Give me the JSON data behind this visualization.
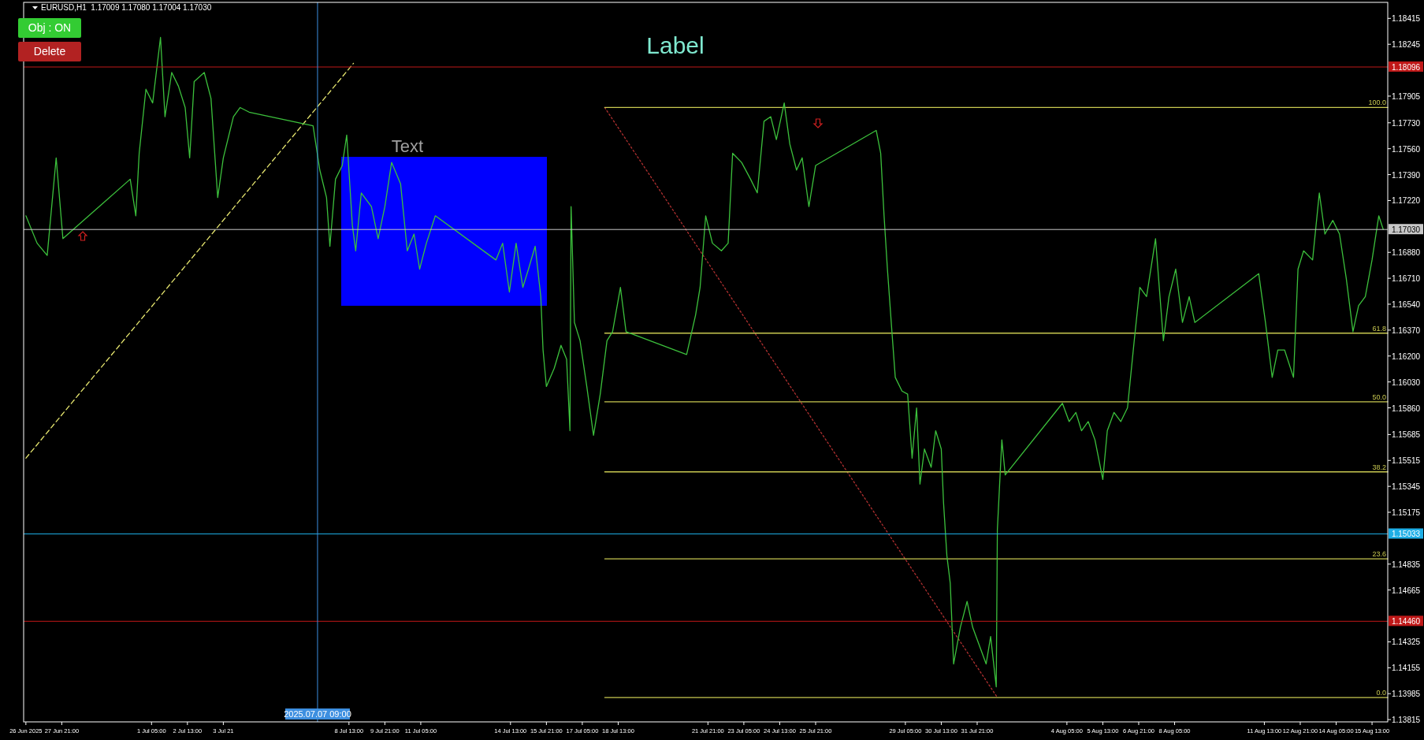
{
  "chart_data": {
    "type": "line",
    "title": "EURUSD,H1  1.17009 1.17080 1.17004 1.17030",
    "xlim": [
      "2025-06-26T11:00",
      "2025-08-16T03:00"
    ],
    "ylim": [
      1.138,
      1.1852
    ],
    "xticks": [
      {
        "value": "2025-06-26T13:00",
        "label": "26 Jun 2025"
      },
      {
        "value": "2025-06-27T21:00",
        "label": "27 Jun 21:00"
      },
      {
        "value": "2025-07-01T05:00",
        "label": "1 Jul 05:00"
      },
      {
        "value": "2025-07-02T13:00",
        "label": "2 Jul 13:00"
      },
      {
        "value": "2025-07-03T21:00",
        "label": "3 Jul 21"
      },
      {
        "value": "2025-07-08T13:00",
        "label": "8 Jul 13:00"
      },
      {
        "value": "2025-07-09T21:00",
        "label": "9 Jul 21:00"
      },
      {
        "value": "2025-07-11T05:00",
        "label": "11 Jul 05:00"
      },
      {
        "value": "2025-07-14T13:00",
        "label": "14 Jul 13:00"
      },
      {
        "value": "2025-07-15T21:00",
        "label": "15 Jul 21:00"
      },
      {
        "value": "2025-07-17T05:00",
        "label": "17 Jul 05:00"
      },
      {
        "value": "2025-07-18T13:00",
        "label": "18 Jul 13:00"
      },
      {
        "value": "2025-07-21T21:00",
        "label": "21 Jul 21:00"
      },
      {
        "value": "2025-07-23T05:00",
        "label": "23 Jul 05:00"
      },
      {
        "value": "2025-07-24T13:00",
        "label": "24 Jul 13:00"
      },
      {
        "value": "2025-07-25T21:00",
        "label": "25 Jul 21:00"
      },
      {
        "value": "2025-07-29T05:00",
        "label": "29 Jul 05:00"
      },
      {
        "value": "2025-07-30T13:00",
        "label": "30 Jul 13:00"
      },
      {
        "value": "2025-07-31T21:00",
        "label": "31 Jul 21:00"
      },
      {
        "value": "2025-08-04T05:00",
        "label": "4 Aug 05:00"
      },
      {
        "value": "2025-08-05T13:00",
        "label": "5 Aug 13:00"
      },
      {
        "value": "2025-08-06T21:00",
        "label": "6 Aug 21:00"
      },
      {
        "value": "2025-08-08T05:00",
        "label": "8 Aug 05:00"
      },
      {
        "value": "2025-08-11T13:00",
        "label": "11 Aug 13:00"
      },
      {
        "value": "2025-08-12T21:00",
        "label": "12 Aug 21:00"
      },
      {
        "value": "2025-08-14T05:00",
        "label": "14 Aug 05:00"
      },
      {
        "value": "2025-08-15T13:00",
        "label": "15 Aug 13:00"
      }
    ],
    "yticks": [
      {
        "value": 1.18415,
        "label": "1.18415"
      },
      {
        "value": 1.18245,
        "label": "1.18245"
      },
      {
        "value": 1.17905,
        "label": "1.17905"
      },
      {
        "value": 1.1773,
        "label": "1.17730"
      },
      {
        "value": 1.1756,
        "label": "1.17560"
      },
      {
        "value": 1.1739,
        "label": "1.17390"
      },
      {
        "value": 1.1722,
        "label": "1.17220"
      },
      {
        "value": 1.1688,
        "label": "1.16880"
      },
      {
        "value": 1.1671,
        "label": "1.16710"
      },
      {
        "value": 1.1654,
        "label": "1.16540"
      },
      {
        "value": 1.1637,
        "label": "1.16370"
      },
      {
        "value": 1.162,
        "label": "1.16200"
      },
      {
        "value": 1.1603,
        "label": "1.16030"
      },
      {
        "value": 1.1586,
        "label": "1.15860"
      },
      {
        "value": 1.15685,
        "label": "1.15685"
      },
      {
        "value": 1.15515,
        "label": "1.15515"
      },
      {
        "value": 1.15345,
        "label": "1.15345"
      },
      {
        "value": 1.15175,
        "label": "1.15175"
      },
      {
        "value": 1.14835,
        "label": "1.14835"
      },
      {
        "value": 1.14665,
        "label": "1.14665"
      },
      {
        "value": 1.14325,
        "label": "1.14325"
      },
      {
        "value": 1.14155,
        "label": "1.14155"
      },
      {
        "value": 1.13985,
        "label": "1.13985"
      },
      {
        "value": 1.13815,
        "label": "1.13815"
      }
    ],
    "series": [
      {
        "type": "line",
        "color": "#e8e870",
        "line_style": "dashed",
        "x": [
          "2025-06-26T13:00",
          "2025-07-08T17:00"
        ],
        "values": [
          1.1553,
          1.1812
        ]
      },
      {
        "type": "line",
        "color": "#b03030",
        "line_style": "dotted",
        "x": [
          "2025-07-18T01:00",
          "2025-08-01T15:00"
        ],
        "values": [
          1.1783,
          1.1396
        ]
      },
      {
        "type": "line",
        "name": "100.0",
        "color": "#c8c850",
        "x": [
          "2025-07-18T01:00",
          "2025-08-16T03:00"
        ],
        "values": [
          1.1783,
          1.1783
        ]
      },
      {
        "type": "line",
        "name": "61.8",
        "color": "#c8c850",
        "x": [
          "2025-07-18T01:00",
          "2025-08-16T03:00"
        ],
        "values": [
          1.1635,
          1.1635
        ]
      },
      {
        "type": "line",
        "name": "50.0",
        "color": "#c8c850",
        "x": [
          "2025-07-18T01:00",
          "2025-08-16T03:00"
        ],
        "values": [
          1.159,
          1.159
        ]
      },
      {
        "type": "line",
        "name": "38.2",
        "color": "#c8c850",
        "x": [
          "2025-07-18T01:00",
          "2025-08-16T03:00"
        ],
        "values": [
          1.1544,
          1.1544
        ]
      },
      {
        "type": "line",
        "name": "23.6",
        "color": "#c8c850",
        "x": [
          "2025-07-18T01:00",
          "2025-08-16T03:00"
        ],
        "values": [
          1.1487,
          1.1487
        ]
      },
      {
        "type": "line",
        "name": "0.0",
        "color": "#c8c850",
        "x": [
          "2025-07-18T01:00",
          "2025-08-16T03:00"
        ],
        "values": [
          1.1396,
          1.1396
        ]
      },
      {
        "color": "#3cc03c",
        "x": [
          "2025-06-26T13:00",
          "2025-06-26T23:00",
          "2025-06-27T08:00",
          "2025-06-27T16:00",
          "2025-06-27T22:00",
          "2025-06-30T10:00",
          "2025-06-30T15:00",
          "2025-06-30T18:00",
          "2025-07-01T00:00",
          "2025-07-01T06:00",
          "2025-07-01T13:00",
          "2025-07-01T17:00",
          "2025-07-01T23:00",
          "2025-07-02T05:00",
          "2025-07-02T11:00",
          "2025-07-02T15:00",
          "2025-07-02T19:00",
          "2025-07-03T04:00",
          "2025-07-03T10:00",
          "2025-07-03T16:00",
          "2025-07-03T21:00",
          "2025-07-04T06:00",
          "2025-07-04T12:00",
          "2025-07-04T20:00",
          "2025-07-07T05:00",
          "2025-07-07T11:00",
          "2025-07-07T17:00",
          "2025-07-07T20:00",
          "2025-07-08T01:00",
          "2025-07-08T07:00",
          "2025-07-08T11:00",
          "2025-07-08T16:00",
          "2025-07-08T19:00",
          "2025-07-09T00:00",
          "2025-07-09T09:00",
          "2025-07-09T15:00",
          "2025-07-09T21:00",
          "2025-07-10T03:00",
          "2025-07-10T11:00",
          "2025-07-10T17:00",
          "2025-07-10T23:00",
          "2025-07-11T04:00",
          "2025-07-11T10:00",
          "2025-07-11T18:00",
          "2025-07-14T00:00",
          "2025-07-14T06:00",
          "2025-07-14T12:00",
          "2025-07-14T18:00",
          "2025-07-15T00:00",
          "2025-07-15T05:00",
          "2025-07-15T11:00",
          "2025-07-15T16:00",
          "2025-07-15T18:00",
          "2025-07-15T21:00",
          "2025-07-16T04:00",
          "2025-07-16T10:00",
          "2025-07-16T15:00",
          "2025-07-16T18:00",
          "2025-07-16T19:00",
          "2025-07-16T22:00",
          "2025-07-17T03:00",
          "2025-07-17T09:00",
          "2025-07-17T15:00",
          "2025-07-17T21:00",
          "2025-07-18T03:00",
          "2025-07-18T08:00",
          "2025-07-18T15:00",
          "2025-07-18T20:00",
          "2025-07-21T02:00",
          "2025-07-21T10:00",
          "2025-07-21T14:00",
          "2025-07-21T19:00",
          "2025-07-22T01:00",
          "2025-07-22T09:00",
          "2025-07-22T15:00",
          "2025-07-22T19:00",
          "2025-07-23T03:00",
          "2025-07-23T11:00",
          "2025-07-23T17:00",
          "2025-07-23T23:00",
          "2025-07-24T05:00",
          "2025-07-24T10:00",
          "2025-07-24T17:00",
          "2025-07-24T22:00",
          "2025-07-25T04:00",
          "2025-07-25T09:00",
          "2025-07-25T15:00",
          "2025-07-25T21:00",
          "2025-07-28T03:00",
          "2025-07-28T07:00",
          "2025-07-28T10:00",
          "2025-07-28T13:00",
          "2025-07-28T17:00",
          "2025-07-28T20:00",
          "2025-07-29T02:00",
          "2025-07-29T07:00",
          "2025-07-29T11:00",
          "2025-07-29T15:00",
          "2025-07-29T18:00",
          "2025-07-29T22:00",
          "2025-07-30T04:00",
          "2025-07-30T08:00",
          "2025-07-30T13:00",
          "2025-07-30T15:00",
          "2025-07-30T18:00",
          "2025-07-30T21:00",
          "2025-07-31T00:00",
          "2025-07-31T06:00",
          "2025-07-31T12:00",
          "2025-07-31T17:00",
          "2025-07-31T23:00",
          "2025-08-01T05:00",
          "2025-08-01T09:00",
          "2025-08-01T14:00",
          "2025-08-01T15:00",
          "2025-08-01T19:00",
          "2025-08-01T22:00",
          "2025-08-04T01:00",
          "2025-08-04T07:00",
          "2025-08-04T13:00",
          "2025-08-04T18:00",
          "2025-08-05T00:00",
          "2025-08-05T06:00",
          "2025-08-05T13:00",
          "2025-08-05T17:00",
          "2025-08-05T23:00",
          "2025-08-06T05:00",
          "2025-08-06T11:00",
          "2025-08-06T17:00",
          "2025-08-06T22:00",
          "2025-08-07T04:00",
          "2025-08-07T12:00",
          "2025-08-07T19:00",
          "2025-08-08T00:00",
          "2025-08-08T06:00",
          "2025-08-08T12:00",
          "2025-08-08T18:00",
          "2025-08-08T23:00",
          "2025-08-11T08:00",
          "2025-08-11T14:00",
          "2025-08-11T20:00",
          "2025-08-12T01:00",
          "2025-08-12T07:00",
          "2025-08-12T15:00",
          "2025-08-12T19:00",
          "2025-08-13T00:00",
          "2025-08-13T08:00",
          "2025-08-13T14:00",
          "2025-08-13T19:00",
          "2025-08-14T02:00",
          "2025-08-14T08:00",
          "2025-08-14T14:00",
          "2025-08-14T20:00",
          "2025-08-15T01:00",
          "2025-08-15T07:00",
          "2025-08-15T13:00",
          "2025-08-15T19:00",
          "2025-08-15T23:00"
        ],
        "values": [
          1.1712,
          1.1694,
          1.1686,
          1.175,
          1.1697,
          1.1736,
          1.1712,
          1.1753,
          1.1795,
          1.1786,
          1.1829,
          1.1777,
          1.1806,
          1.1797,
          1.1783,
          1.175,
          1.18,
          1.1806,
          1.1789,
          1.1724,
          1.175,
          1.1777,
          1.1783,
          1.178,
          1.1771,
          1.1742,
          1.1724,
          1.1692,
          1.1736,
          1.1745,
          1.1765,
          1.1706,
          1.1689,
          1.1727,
          1.1718,
          1.1697,
          1.1718,
          1.1747,
          1.1733,
          1.1689,
          1.17,
          1.1677,
          1.1694,
          1.1712,
          1.1683,
          1.1694,
          1.1662,
          1.1694,
          1.1665,
          1.1677,
          1.1692,
          1.1659,
          1.1624,
          1.16,
          1.1612,
          1.1627,
          1.1618,
          1.1571,
          1.1718,
          1.1642,
          1.163,
          1.16,
          1.1568,
          1.1595,
          1.163,
          1.1636,
          1.1665,
          1.1636,
          1.1621,
          1.1647,
          1.1665,
          1.1712,
          1.1694,
          1.1689,
          1.1694,
          1.1753,
          1.1747,
          1.1736,
          1.1727,
          1.1774,
          1.1777,
          1.1762,
          1.1786,
          1.1759,
          1.1742,
          1.175,
          1.1718,
          1.1745,
          1.1768,
          1.1753,
          1.1712,
          1.1677,
          1.1636,
          1.1606,
          1.1597,
          1.1595,
          1.1553,
          1.1586,
          1.1536,
          1.1559,
          1.1547,
          1.1571,
          1.1559,
          1.1524,
          1.1489,
          1.1471,
          1.1418,
          1.1442,
          1.1459,
          1.1442,
          1.143,
          1.1418,
          1.1436,
          1.1403,
          1.1506,
          1.1565,
          1.1542,
          1.1589,
          1.1577,
          1.1583,
          1.1571,
          1.1577,
          1.1565,
          1.1539,
          1.1571,
          1.1583,
          1.1577,
          1.1586,
          1.163,
          1.1665,
          1.1659,
          1.1697,
          1.163,
          1.1659,
          1.1677,
          1.1642,
          1.1659,
          1.1642,
          1.1674,
          1.1642,
          1.1606,
          1.1624,
          1.1624,
          1.1606,
          1.1677,
          1.1689,
          1.1683,
          1.1727,
          1.17,
          1.1709,
          1.17,
          1.1671,
          1.1636,
          1.1653,
          1.1659,
          1.1683,
          1.1712,
          1.1703
        ]
      }
    ],
    "ref_lines": [
      {
        "axis": "y",
        "value": 1.18096,
        "label": "1.18096",
        "color": "#c01818"
      },
      {
        "axis": "y",
        "value": 1.1703,
        "label": "1.17030",
        "color": "#c8c8c8"
      },
      {
        "axis": "y",
        "value": 1.15033,
        "label": "1.15033",
        "color": "#1eaee6"
      },
      {
        "axis": "y",
        "value": 1.1446,
        "label": "1.14460",
        "color": "#c01818"
      },
      {
        "axis": "x",
        "value": "2025-07-07T09:00",
        "label": "2025.07.07 09:00",
        "color": "#3d8fe0"
      }
    ],
    "annotations": [
      "Label",
      "Obj : ON",
      "Delete",
      "Text"
    ]
  }
}
